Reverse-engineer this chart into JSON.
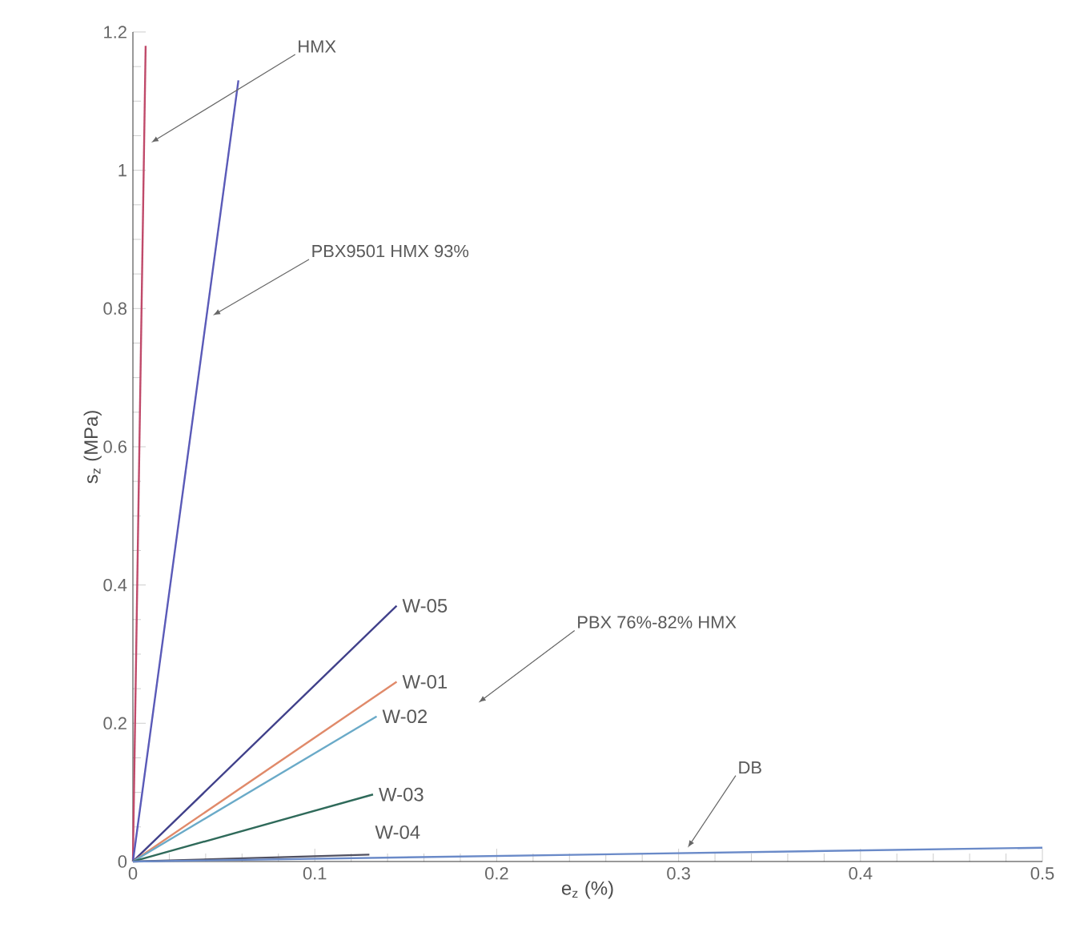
{
  "chart_data": {
    "type": "line",
    "xlabel": "e$_{z}$ (%)",
    "ylabel": "s$_{z}$ (MPa)",
    "xlim": [
      0,
      0.5
    ],
    "ylim": [
      0,
      1.2
    ],
    "xticks": [
      0,
      0.1,
      0.2,
      0.3,
      0.4,
      0.5
    ],
    "yticks": [
      0,
      0.2,
      0.4,
      0.6,
      0.8,
      1,
      1.2
    ],
    "grid": false,
    "marker": "none",
    "line_style": "solid",
    "series": [
      {
        "color": "#c04a6a",
        "x": [
          0,
          0.007
        ],
        "values": [
          0,
          1.18
        ]
      },
      {
        "color": "#5a5ab8",
        "x": [
          0,
          0.058
        ],
        "values": [
          0,
          1.13
        ]
      },
      {
        "name": "W-05",
        "color": "#40408a",
        "x": [
          0,
          0.145
        ],
        "values": [
          0,
          0.37
        ]
      },
      {
        "name": "W-01",
        "color": "#e08a6a",
        "x": [
          0,
          0.145
        ],
        "values": [
          0,
          0.26
        ]
      },
      {
        "name": "W-02",
        "color": "#6aaac8",
        "x": [
          0,
          0.134
        ],
        "values": [
          0,
          0.21
        ]
      },
      {
        "name": "W-03",
        "color": "#2f6a5a",
        "x": [
          0,
          0.132
        ],
        "values": [
          0,
          0.097
        ]
      },
      {
        "name": "W-04",
        "color": "#505060",
        "x": [
          0,
          0.13
        ],
        "values": [
          0,
          0.01
        ]
      },
      {
        "color": "#6a8ac8",
        "x": [
          0,
          0.5
        ],
        "values": [
          0,
          0.02
        ]
      }
    ],
    "annotations": [
      {
        "text": "HMX",
        "x": 0.01,
        "y": 1.04
      },
      {
        "text": "PBX9501 HMX 93%",
        "x": 0.044,
        "y": 0.79
      },
      "PBX 76%-82% HMX",
      {
        "text": "DB",
        "x": 0.305,
        "y": 0.02
      }
    ]
  }
}
